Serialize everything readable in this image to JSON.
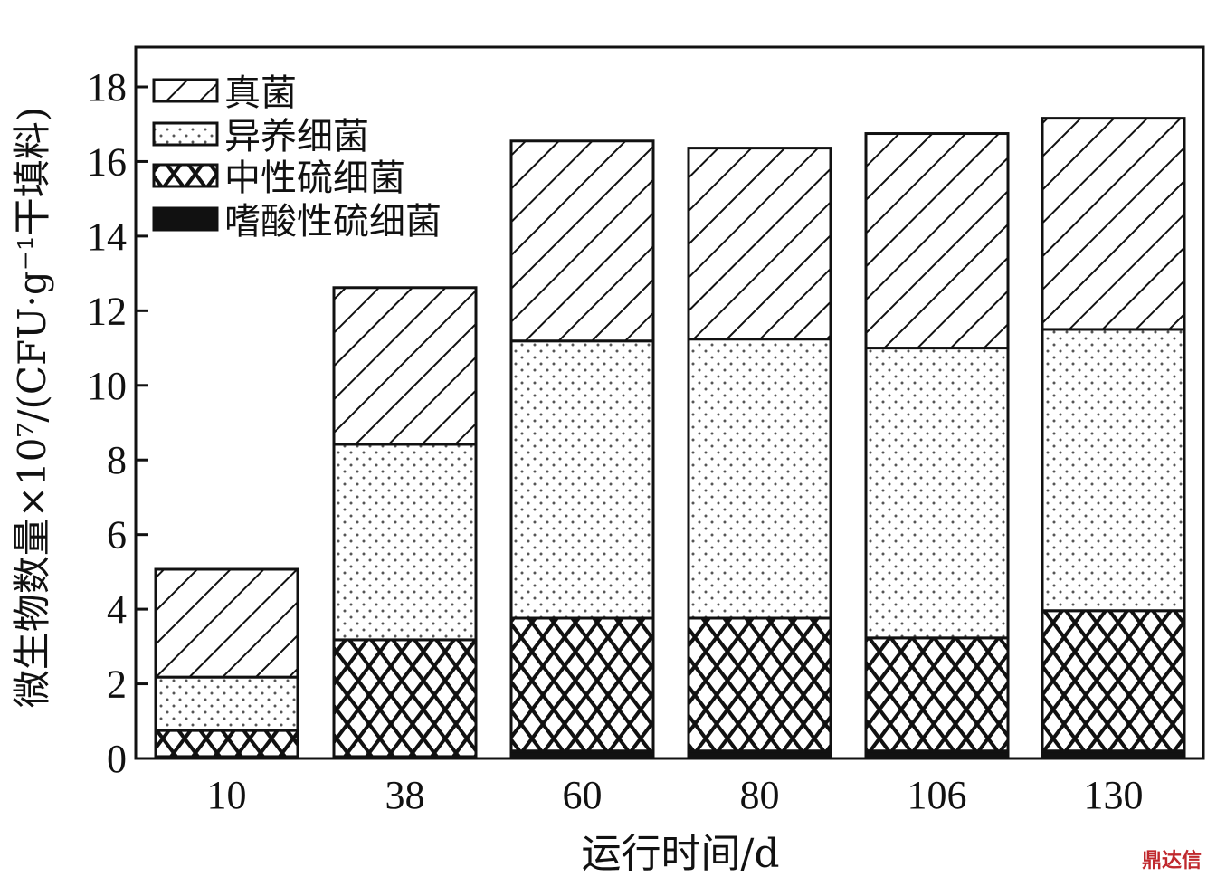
{
  "chart_data": {
    "type": "bar",
    "stacked": true,
    "categories": [
      "10",
      "38",
      "60",
      "80",
      "106",
      "130"
    ],
    "series": [
      {
        "name": "嗜酸性硫细菌",
        "pattern": "solid-black",
        "values": [
          0.05,
          0.05,
          0.2,
          0.2,
          0.2,
          0.2
        ]
      },
      {
        "name": "中性硫细菌",
        "pattern": "crosshatch",
        "values": [
          0.7,
          3.13,
          3.56,
          3.56,
          3.03,
          3.76
        ]
      },
      {
        "name": "异养细菌",
        "pattern": "dots",
        "values": [
          1.43,
          5.24,
          7.43,
          7.48,
          7.77,
          7.54
        ]
      },
      {
        "name": "真菌",
        "pattern": "diagonal-hatch",
        "values": [
          2.89,
          4.2,
          5.36,
          5.12,
          5.75,
          5.66
        ]
      }
    ],
    "xlabel": "运行时间/d",
    "ylabel": "微生物数量×10⁷/(CFU·g⁻¹干填料)",
    "ylim": [
      0,
      19
    ],
    "yticks": [
      "0",
      "2",
      "4",
      "6",
      "8",
      "10",
      "12",
      "14",
      "16",
      "18"
    ],
    "legend_position": "top-left",
    "grid": false
  },
  "watermark": "鼎达信"
}
